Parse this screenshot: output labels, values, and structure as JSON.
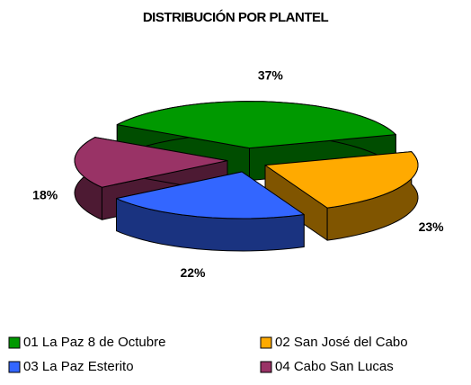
{
  "chart_data": {
    "type": "pie",
    "title": "DISTRIBUCIÓN POR PLANTEL",
    "categories": [
      "01 La Paz 8 de Octubre",
      "02 San José del Cabo",
      "03 La Paz Esterito",
      "04 Cabo San Lucas"
    ],
    "values": [
      37,
      23,
      22,
      18
    ],
    "value_labels": [
      "37%",
      "23%",
      "22%",
      "18%"
    ],
    "colors": [
      "#009900",
      "#ffaa00",
      "#3366ff",
      "#993366"
    ],
    "legend": "bottom"
  }
}
